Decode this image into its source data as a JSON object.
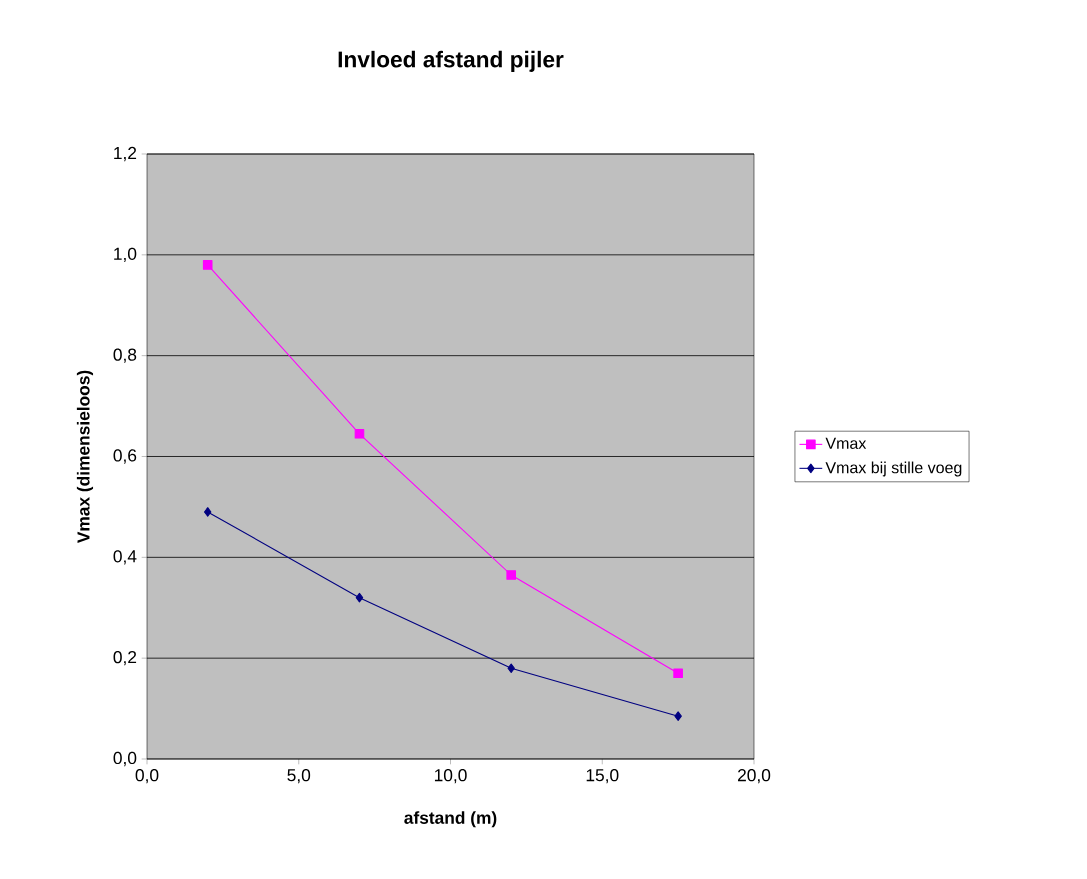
{
  "chart_data": {
    "type": "line",
    "title": "Invloed afstand pijler",
    "xlabel": "afstand (m)",
    "ylabel": "Vmax (dimensieloos)",
    "series": [
      {
        "name": "Vmax",
        "color": "#ff00ff",
        "marker": "square",
        "x": [
          2,
          7,
          12,
          17.5
        ],
        "values": [
          0.98,
          0.645,
          0.365,
          0.17
        ]
      },
      {
        "name": "Vmax bij stille voeg",
        "color": "#000080",
        "marker": "diamond",
        "x": [
          2,
          7,
          12,
          17.5
        ],
        "values": [
          0.49,
          0.32,
          0.18,
          0.085
        ]
      }
    ],
    "xlim": [
      0,
      20
    ],
    "ylim": [
      0,
      1.2
    ],
    "xticks": [
      {
        "value": 0,
        "label": "0,0"
      },
      {
        "value": 5,
        "label": "5,0"
      },
      {
        "value": 10,
        "label": "10,0"
      },
      {
        "value": 15,
        "label": "15,0"
      },
      {
        "value": 20,
        "label": "20,0"
      }
    ],
    "yticks": [
      {
        "value": 0,
        "label": "0,0"
      },
      {
        "value": 0.2,
        "label": "0,2"
      },
      {
        "value": 0.4,
        "label": "0,4"
      },
      {
        "value": 0.6,
        "label": "0,6"
      },
      {
        "value": 0.8,
        "label": "0,8"
      },
      {
        "value": 1.0,
        "label": "1,0"
      },
      {
        "value": 1.2,
        "label": "1,2"
      }
    ],
    "grid": "y",
    "legend": "right",
    "line_style": "solid"
  }
}
